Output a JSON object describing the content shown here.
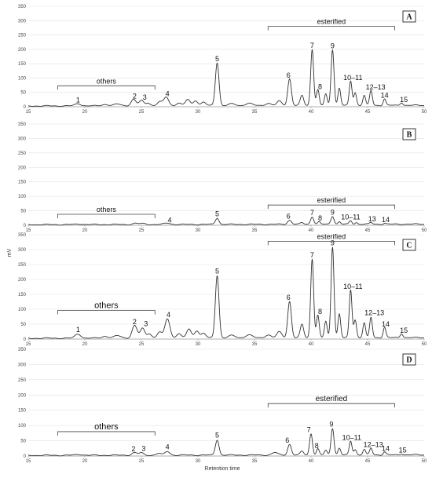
{
  "y_axis_label": "mV",
  "x_axis_label": "Retention time",
  "chart_data": [
    {
      "type": "line",
      "panel": "A",
      "xlim": [
        15,
        50
      ],
      "ylim": [
        0,
        350
      ],
      "x_ticks": [
        15,
        20,
        25,
        30,
        35,
        40,
        45,
        50
      ],
      "y_ticks": [
        0,
        50,
        100,
        150,
        200,
        250,
        300,
        350
      ],
      "baseline": 5,
      "peaks": [
        {
          "x": 19.4,
          "y": 8,
          "w": 0.25
        },
        {
          "x": 21.8,
          "y": 5,
          "w": 0.3
        },
        {
          "x": 22.9,
          "y": 6,
          "w": 0.3
        },
        {
          "x": 24.3,
          "y": 22,
          "w": 0.22
        },
        {
          "x": 25.0,
          "y": 18,
          "w": 0.2
        },
        {
          "x": 25.6,
          "y": 10,
          "w": 0.2
        },
        {
          "x": 26.6,
          "y": 14,
          "w": 0.2
        },
        {
          "x": 27.2,
          "y": 30,
          "w": 0.22
        },
        {
          "x": 28.3,
          "y": 10,
          "w": 0.2
        },
        {
          "x": 29.1,
          "y": 22,
          "w": 0.2
        },
        {
          "x": 29.8,
          "y": 18,
          "w": 0.2
        },
        {
          "x": 30.5,
          "y": 12,
          "w": 0.2
        },
        {
          "x": 31.7,
          "y": 150,
          "w": 0.16
        },
        {
          "x": 33.0,
          "y": 6,
          "w": 0.3
        },
        {
          "x": 34.5,
          "y": 8,
          "w": 0.3
        },
        {
          "x": 36.2,
          "y": 8,
          "w": 0.25
        },
        {
          "x": 37.2,
          "y": 15,
          "w": 0.22
        },
        {
          "x": 38.1,
          "y": 93,
          "w": 0.16
        },
        {
          "x": 39.2,
          "y": 35,
          "w": 0.15
        },
        {
          "x": 40.1,
          "y": 196,
          "w": 0.13
        },
        {
          "x": 40.6,
          "y": 55,
          "w": 0.12
        },
        {
          "x": 41.3,
          "y": 40,
          "w": 0.12
        },
        {
          "x": 41.9,
          "y": 195,
          "w": 0.13
        },
        {
          "x": 42.5,
          "y": 60,
          "w": 0.12
        },
        {
          "x": 43.5,
          "y": 85,
          "w": 0.12
        },
        {
          "x": 43.9,
          "y": 45,
          "w": 0.12
        },
        {
          "x": 44.7,
          "y": 35,
          "w": 0.12
        },
        {
          "x": 45.3,
          "y": 52,
          "w": 0.12
        },
        {
          "x": 46.5,
          "y": 23,
          "w": 0.12
        },
        {
          "x": 48.0,
          "y": 10,
          "w": 0.12
        }
      ],
      "peak_labels": [
        {
          "text": "1",
          "x": 19.4,
          "y": 15
        },
        {
          "text": "2",
          "x": 24.4,
          "y": 29
        },
        {
          "text": "3",
          "x": 25.3,
          "y": 25
        },
        {
          "text": "4",
          "x": 27.3,
          "y": 37
        },
        {
          "text": "5",
          "x": 31.7,
          "y": 159
        },
        {
          "text": "6",
          "x": 38.0,
          "y": 101
        },
        {
          "text": "7",
          "x": 40.1,
          "y": 205
        },
        {
          "text": "8",
          "x": 40.8,
          "y": 62
        },
        {
          "text": "9",
          "x": 41.9,
          "y": 204
        },
        {
          "text": "10–11",
          "x": 43.7,
          "y": 93
        },
        {
          "text": "12–13",
          "x": 45.7,
          "y": 60
        },
        {
          "text": "14",
          "x": 46.5,
          "y": 31
        },
        {
          "text": "15",
          "x": 48.2,
          "y": 17
        }
      ],
      "groups": [
        {
          "text": "others",
          "x_start": 17.6,
          "x_end": 26.2,
          "y": 73,
          "size": 9
        },
        {
          "text": "esterified",
          "x_start": 36.2,
          "x_end": 47.4,
          "y": 280,
          "size": 9
        }
      ]
    },
    {
      "type": "line",
      "panel": "B",
      "xlim": [
        15,
        50
      ],
      "ylim": [
        0,
        350
      ],
      "x_ticks": [
        15,
        20,
        25,
        30,
        35,
        40,
        45,
        50
      ],
      "y_ticks": [
        0,
        50,
        100,
        150,
        200,
        250,
        300,
        350
      ],
      "baseline": 4,
      "peaks": [
        {
          "x": 19.5,
          "y": 2,
          "w": 0.3
        },
        {
          "x": 24.5,
          "y": 4,
          "w": 0.25
        },
        {
          "x": 25.2,
          "y": 3,
          "w": 0.25
        },
        {
          "x": 27.3,
          "y": 5,
          "w": 0.25
        },
        {
          "x": 31.7,
          "y": 22,
          "w": 0.16
        },
        {
          "x": 38.1,
          "y": 14,
          "w": 0.18
        },
        {
          "x": 39.2,
          "y": 5,
          "w": 0.15
        },
        {
          "x": 40.1,
          "y": 26,
          "w": 0.14
        },
        {
          "x": 40.7,
          "y": 8,
          "w": 0.12
        },
        {
          "x": 41.9,
          "y": 28,
          "w": 0.14
        },
        {
          "x": 42.5,
          "y": 8,
          "w": 0.12
        },
        {
          "x": 43.5,
          "y": 12,
          "w": 0.12
        },
        {
          "x": 44.0,
          "y": 6,
          "w": 0.12
        },
        {
          "x": 45.3,
          "y": 6,
          "w": 0.12
        },
        {
          "x": 46.5,
          "y": 3,
          "w": 0.12
        }
      ],
      "peak_labels": [
        {
          "text": "4",
          "x": 27.5,
          "y": 10
        },
        {
          "text": "5",
          "x": 31.7,
          "y": 31
        },
        {
          "text": "6",
          "x": 38.0,
          "y": 23
        },
        {
          "text": "7",
          "x": 40.1,
          "y": 35
        },
        {
          "text": "8",
          "x": 40.8,
          "y": 16
        },
        {
          "text": "9",
          "x": 41.9,
          "y": 37
        },
        {
          "text": "10–11",
          "x": 43.5,
          "y": 20
        },
        {
          "text": "13",
          "x": 45.4,
          "y": 13
        },
        {
          "text": "14",
          "x": 46.6,
          "y": 11
        }
      ],
      "groups": [
        {
          "text": "others",
          "x_start": 17.6,
          "x_end": 26.2,
          "y": 38,
          "size": 9
        },
        {
          "text": "esterified",
          "x_start": 36.2,
          "x_end": 47.4,
          "y": 70,
          "size": 9
        }
      ]
    },
    {
      "type": "line",
      "panel": "C",
      "xlim": [
        15,
        50
      ],
      "ylim": [
        0,
        350
      ],
      "x_ticks": [
        15,
        20,
        25,
        30,
        35,
        40,
        45,
        50
      ],
      "y_ticks": [
        0,
        50,
        100,
        150,
        200,
        250,
        300,
        350
      ],
      "baseline": 5,
      "peaks": [
        {
          "x": 19.4,
          "y": 14,
          "w": 0.25
        },
        {
          "x": 21.8,
          "y": 6,
          "w": 0.3
        },
        {
          "x": 22.9,
          "y": 8,
          "w": 0.3
        },
        {
          "x": 24.4,
          "y": 42,
          "w": 0.22
        },
        {
          "x": 25.1,
          "y": 32,
          "w": 0.2
        },
        {
          "x": 25.7,
          "y": 15,
          "w": 0.2
        },
        {
          "x": 26.6,
          "y": 20,
          "w": 0.2
        },
        {
          "x": 27.3,
          "y": 65,
          "w": 0.22
        },
        {
          "x": 28.3,
          "y": 15,
          "w": 0.2
        },
        {
          "x": 29.2,
          "y": 30,
          "w": 0.2
        },
        {
          "x": 29.9,
          "y": 25,
          "w": 0.2
        },
        {
          "x": 30.5,
          "y": 15,
          "w": 0.2
        },
        {
          "x": 31.7,
          "y": 210,
          "w": 0.16
        },
        {
          "x": 33.0,
          "y": 8,
          "w": 0.3
        },
        {
          "x": 34.5,
          "y": 10,
          "w": 0.3
        },
        {
          "x": 36.2,
          "y": 10,
          "w": 0.25
        },
        {
          "x": 37.2,
          "y": 20,
          "w": 0.22
        },
        {
          "x": 38.1,
          "y": 122,
          "w": 0.16
        },
        {
          "x": 39.2,
          "y": 45,
          "w": 0.15
        },
        {
          "x": 40.1,
          "y": 265,
          "w": 0.13
        },
        {
          "x": 40.6,
          "y": 75,
          "w": 0.12
        },
        {
          "x": 41.3,
          "y": 55,
          "w": 0.12
        },
        {
          "x": 41.9,
          "y": 305,
          "w": 0.13
        },
        {
          "x": 42.5,
          "y": 80,
          "w": 0.12
        },
        {
          "x": 43.5,
          "y": 160,
          "w": 0.12
        },
        {
          "x": 43.9,
          "y": 60,
          "w": 0.12
        },
        {
          "x": 44.7,
          "y": 50,
          "w": 0.12
        },
        {
          "x": 45.3,
          "y": 68,
          "w": 0.12
        },
        {
          "x": 46.5,
          "y": 35,
          "w": 0.12
        },
        {
          "x": 48.0,
          "y": 14,
          "w": 0.12
        }
      ],
      "peak_labels": [
        {
          "text": "1",
          "x": 19.4,
          "y": 24
        },
        {
          "text": "2",
          "x": 24.4,
          "y": 50
        },
        {
          "text": "3",
          "x": 25.4,
          "y": 44
        },
        {
          "text": "4",
          "x": 27.4,
          "y": 74
        },
        {
          "text": "5",
          "x": 31.7,
          "y": 220
        },
        {
          "text": "6",
          "x": 38.0,
          "y": 131
        },
        {
          "text": "7",
          "x": 40.1,
          "y": 274
        },
        {
          "text": "8",
          "x": 40.8,
          "y": 84
        },
        {
          "text": "9",
          "x": 41.9,
          "y": 314
        },
        {
          "text": "10–11",
          "x": 43.7,
          "y": 169
        },
        {
          "text": "12–13",
          "x": 45.6,
          "y": 80
        },
        {
          "text": "14",
          "x": 46.6,
          "y": 42
        },
        {
          "text": "15",
          "x": 48.2,
          "y": 21
        }
      ],
      "groups": [
        {
          "text": "others",
          "x_start": 17.6,
          "x_end": 26.2,
          "y": 96,
          "size": 11
        },
        {
          "text": "esterified",
          "x_start": 36.2,
          "x_end": 47.4,
          "y": 328,
          "size": 9
        }
      ]
    },
    {
      "type": "line",
      "panel": "D",
      "xlim": [
        15,
        50
      ],
      "ylim": [
        0,
        350
      ],
      "x_ticks": [
        15,
        20,
        25,
        30,
        35,
        40,
        45,
        50
      ],
      "y_ticks": [
        0,
        50,
        100,
        150,
        200,
        250,
        300,
        350
      ],
      "baseline": 4,
      "peaks": [
        {
          "x": 19.5,
          "y": 3,
          "w": 0.3
        },
        {
          "x": 24.4,
          "y": 8,
          "w": 0.25
        },
        {
          "x": 25.0,
          "y": 7,
          "w": 0.2
        },
        {
          "x": 26.5,
          "y": 6,
          "w": 0.2
        },
        {
          "x": 27.3,
          "y": 12,
          "w": 0.22
        },
        {
          "x": 31.7,
          "y": 50,
          "w": 0.16
        },
        {
          "x": 36.8,
          "y": 8,
          "w": 0.25
        },
        {
          "x": 38.1,
          "y": 35,
          "w": 0.16
        },
        {
          "x": 39.2,
          "y": 12,
          "w": 0.15
        },
        {
          "x": 40.0,
          "y": 70,
          "w": 0.13
        },
        {
          "x": 40.6,
          "y": 20,
          "w": 0.12
        },
        {
          "x": 41.3,
          "y": 15,
          "w": 0.12
        },
        {
          "x": 41.9,
          "y": 88,
          "w": 0.13
        },
        {
          "x": 42.5,
          "y": 22,
          "w": 0.12
        },
        {
          "x": 43.5,
          "y": 45,
          "w": 0.12
        },
        {
          "x": 43.9,
          "y": 18,
          "w": 0.12
        },
        {
          "x": 44.7,
          "y": 18,
          "w": 0.12
        },
        {
          "x": 45.3,
          "y": 22,
          "w": 0.12
        },
        {
          "x": 46.5,
          "y": 10,
          "w": 0.12
        },
        {
          "x": 48.0,
          "y": 4,
          "w": 0.12
        }
      ],
      "peak_labels": [
        {
          "text": "2",
          "x": 24.3,
          "y": 16
        },
        {
          "text": "3",
          "x": 25.2,
          "y": 17
        },
        {
          "text": "4",
          "x": 27.3,
          "y": 22
        },
        {
          "text": "5",
          "x": 31.7,
          "y": 60
        },
        {
          "text": "6",
          "x": 37.9,
          "y": 44
        },
        {
          "text": "7",
          "x": 39.8,
          "y": 79
        },
        {
          "text": "8",
          "x": 40.5,
          "y": 26
        },
        {
          "text": "9",
          "x": 41.8,
          "y": 96
        },
        {
          "text": "10–11",
          "x": 43.6,
          "y": 53
        },
        {
          "text": "12–13",
          "x": 45.5,
          "y": 30
        },
        {
          "text": "14",
          "x": 46.6,
          "y": 17
        },
        {
          "text": "15",
          "x": 48.1,
          "y": 12
        }
      ],
      "groups": [
        {
          "text": "others",
          "x_start": 17.6,
          "x_end": 26.2,
          "y": 80,
          "size": 11
        },
        {
          "text": "esterified",
          "x_start": 36.2,
          "x_end": 47.4,
          "y": 172,
          "size": 10
        }
      ]
    }
  ]
}
